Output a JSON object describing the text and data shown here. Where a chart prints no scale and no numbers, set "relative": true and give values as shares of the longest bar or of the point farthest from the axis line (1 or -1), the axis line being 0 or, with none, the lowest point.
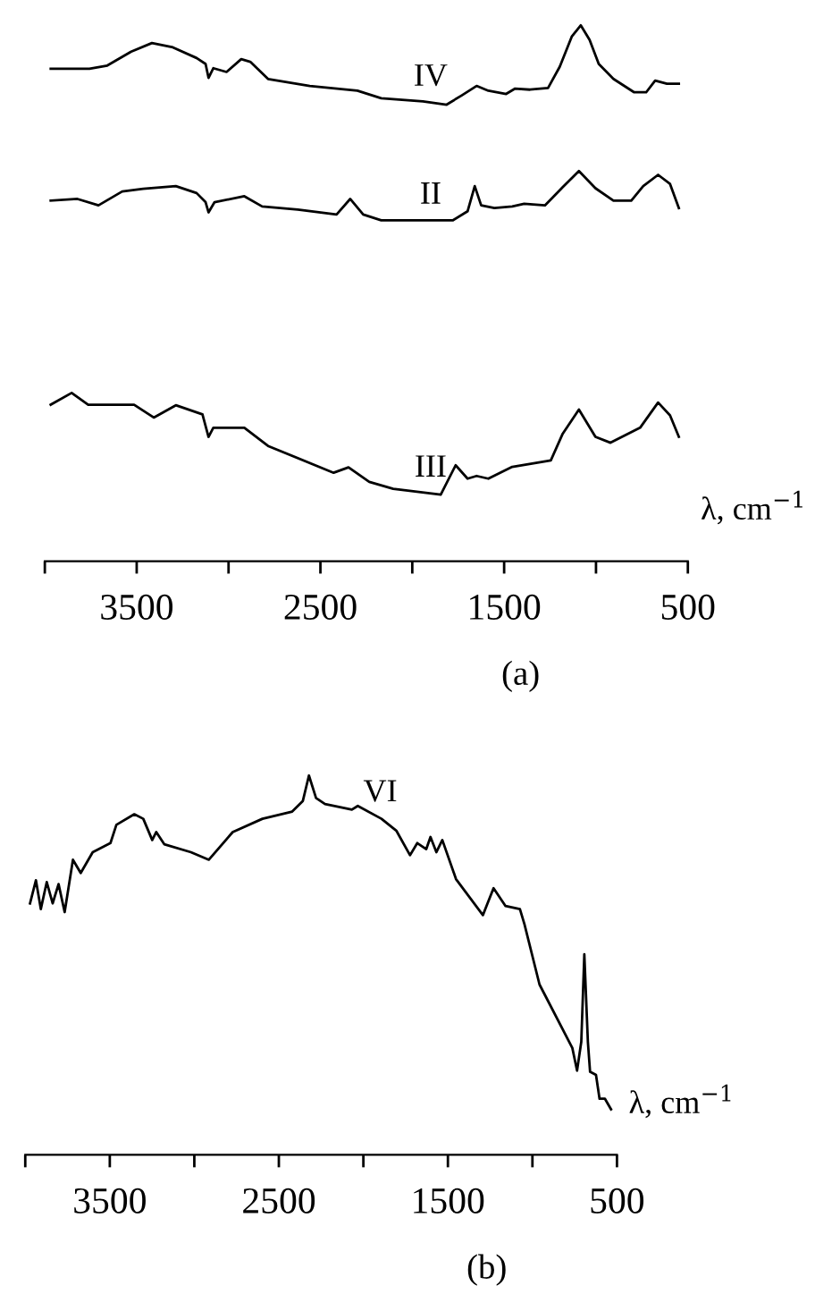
{
  "chart_data": [
    {
      "type": "line",
      "title": "(a)",
      "xlabel": "λ, cm$^{−1}$",
      "relative": true,
      "xlim": [
        4000,
        500
      ],
      "xticks": [
        {
          "value": 4000,
          "label": null
        },
        3500,
        {
          "value": 3000,
          "label": null
        },
        2500,
        {
          "value": 2000,
          "label": null
        },
        1500,
        {
          "value": 1000,
          "label": null
        },
        500
      ],
      "tick_labels": "x",
      "grid": false,
      "legend": false,
      "marker": "none",
      "line_style": "solid",
      "series": [
        {
          "name": "IV",
          "color": "#000000",
          "x": [
            3968,
            3757,
            3660,
            3530,
            3417,
            3303,
            3174,
            3125,
            3109,
            3083,
            3011,
            2931,
            2882,
            2785,
            2558,
            2299,
            2169,
            1942,
            1813,
            1732,
            1650,
            1586,
            1489,
            1440,
            1359,
            1261,
            1197,
            1132,
            1083,
            1035,
            985,
            905,
            792,
            727,
            678,
            614,
            549
          ],
          "values": [
            0.919,
            0.919,
            0.925,
            0.951,
            0.967,
            0.959,
            0.939,
            0.928,
            0.902,
            0.92,
            0.913,
            0.937,
            0.932,
            0.9,
            0.887,
            0.878,
            0.864,
            0.858,
            0.852,
            0.869,
            0.887,
            0.878,
            0.872,
            0.882,
            0.88,
            0.883,
            0.923,
            0.979,
            1.0,
            0.973,
            0.928,
            0.9,
            0.875,
            0.875,
            0.897,
            0.891,
            0.891
          ]
        },
        {
          "name": "II",
          "color": "#000000",
          "x": [
            3968,
            3822,
            3708,
            3579,
            3465,
            3287,
            3174,
            3125,
            3109,
            3076,
            2914,
            2817,
            2623,
            2412,
            2338,
            2267,
            2169,
            1780,
            1699,
            1660,
            1625,
            1553,
            1456,
            1391,
            1278,
            1181,
            1093,
            1003,
            905,
            808,
            743,
            662,
            597,
            549
          ],
          "values": [
            0.673,
            0.676,
            0.664,
            0.69,
            0.695,
            0.7,
            0.687,
            0.67,
            0.651,
            0.67,
            0.681,
            0.662,
            0.656,
            0.647,
            0.676,
            0.647,
            0.636,
            0.636,
            0.653,
            0.7,
            0.664,
            0.659,
            0.662,
            0.667,
            0.664,
            0.698,
            0.728,
            0.696,
            0.673,
            0.673,
            0.7,
            0.721,
            0.704,
            0.659
          ]
        },
        {
          "name": "III",
          "color": "#000000",
          "x": [
            3968,
            3854,
            3764,
            3514,
            3407,
            3287,
            3142,
            3109,
            3083,
            2914,
            2785,
            2428,
            2347,
            2234,
            2104,
            1845,
            1764,
            1699,
            1650,
            1586,
            1456,
            1246,
            1181,
            1093,
            1003,
            921,
            760,
            662,
            597,
            549
          ],
          "values": [
            0.292,
            0.314,
            0.292,
            0.292,
            0.268,
            0.291,
            0.274,
            0.232,
            0.249,
            0.249,
            0.215,
            0.165,
            0.175,
            0.148,
            0.135,
            0.124,
            0.179,
            0.154,
            0.159,
            0.154,
            0.176,
            0.188,
            0.238,
            0.283,
            0.232,
            0.221,
            0.249,
            0.296,
            0.272,
            0.232
          ]
        }
      ]
    },
    {
      "type": "line",
      "title": "(b)",
      "xlabel": "λ, cm$^{−1}$",
      "relative": true,
      "xlim": [
        4000,
        500
      ],
      "xticks": [
        {
          "value": 4000,
          "label": null
        },
        3500,
        {
          "value": 3000,
          "label": null
        },
        2500,
        {
          "value": 2000,
          "label": null
        },
        1500,
        {
          "value": 1000,
          "label": null
        },
        500
      ],
      "tick_labels": "x",
      "grid": false,
      "legend": false,
      "marker": "none",
      "line_style": "solid",
      "series": [
        {
          "name": "VI",
          "color": "#000000",
          "x": [
            3972,
            3937,
            3908,
            3873,
            3838,
            3803,
            3767,
            3718,
            3672,
            3601,
            3496,
            3461,
            3355,
            3302,
            3249,
            3225,
            3178,
            3020,
            2914,
            2773,
            2597,
            2421,
            2358,
            2322,
            2280,
            2227,
            2068,
            2033,
            1893,
            1804,
            1724,
            1681,
            1628,
            1603,
            1568,
            1533,
            1452,
            1293,
            1230,
            1159,
            1074,
            1047,
            958,
            764,
            736,
            711,
            693,
            672,
            659,
            624,
            603,
            571,
            535
          ],
          "values": [
            0.663,
            0.724,
            0.648,
            0.719,
            0.663,
            0.714,
            0.64,
            0.778,
            0.743,
            0.798,
            0.822,
            0.87,
            0.898,
            0.886,
            0.83,
            0.851,
            0.819,
            0.798,
            0.778,
            0.851,
            0.886,
            0.905,
            0.933,
            1.0,
            0.941,
            0.925,
            0.91,
            0.92,
            0.886,
            0.854,
            0.79,
            0.822,
            0.806,
            0.838,
            0.798,
            0.83,
            0.727,
            0.632,
            0.703,
            0.656,
            0.648,
            0.608,
            0.449,
            0.282,
            0.222,
            0.298,
            0.529,
            0.298,
            0.219,
            0.211,
            0.148,
            0.148,
            0.12
          ]
        }
      ]
    }
  ]
}
